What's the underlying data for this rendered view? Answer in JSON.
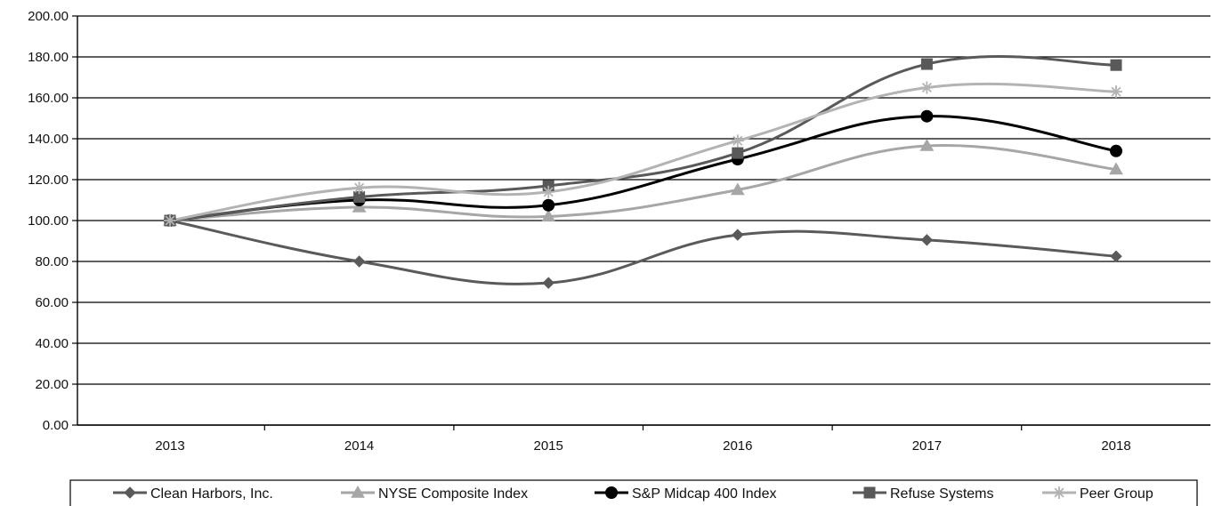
{
  "chart_data": {
    "type": "line",
    "title": "",
    "xlabel": "",
    "ylabel": "",
    "categories": [
      "2013",
      "2014",
      "2015",
      "2016",
      "2017",
      "2018"
    ],
    "ylim": [
      0,
      200
    ],
    "y_ticks": [
      "0.00",
      "20.00",
      "40.00",
      "60.00",
      "80.00",
      "100.00",
      "120.00",
      "140.00",
      "160.00",
      "180.00",
      "200.00"
    ],
    "grid": true,
    "smooth": true,
    "legend_position": "bottom",
    "series": [
      {
        "name": "Clean Harbors, Inc.",
        "values": [
          100.0,
          80.0,
          69.5,
          93.0,
          90.5,
          82.5
        ],
        "color": "#5a5a5a",
        "marker": "diamond",
        "line_width": 3
      },
      {
        "name": "NYSE Composite Index",
        "values": [
          100.0,
          106.5,
          102.0,
          115.0,
          136.5,
          125.0
        ],
        "color": "#a6a6a6",
        "marker": "triangle",
        "line_width": 3
      },
      {
        "name": "S&P Midcap 400 Index",
        "values": [
          100.0,
          110.0,
          107.5,
          130.0,
          151.0,
          134.0
        ],
        "color": "#000000",
        "marker": "circle",
        "line_width": 3
      },
      {
        "name": "Refuse Systems",
        "values": [
          100.0,
          111.5,
          117.0,
          133.0,
          176.5,
          176.0
        ],
        "color": "#595959",
        "marker": "square",
        "line_width": 3
      },
      {
        "name": "Peer Group",
        "values": [
          100.0,
          116.0,
          114.0,
          139.0,
          165.0,
          163.0
        ],
        "color": "#b3b3b3",
        "marker": "asterisk",
        "line_width": 3
      }
    ]
  }
}
